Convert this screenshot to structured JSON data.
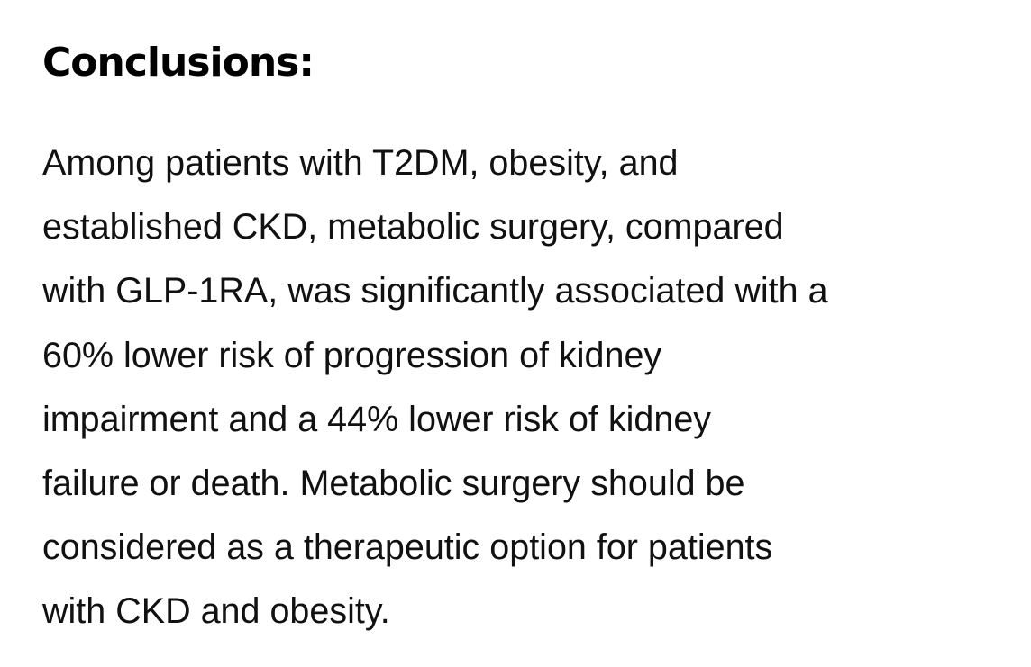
{
  "section": {
    "heading": "Conclusions:",
    "lines": [
      "Among patients with T2DM, obesity, and",
      "established CKD, metabolic surgery, compared",
      "with GLP-1RA, was significantly associated with a",
      "60% lower risk of progression of kidney",
      "impairment and a 44% lower risk of kidney",
      "failure or death. Metabolic surgery should be",
      "considered as a therapeutic option for patients",
      "with CKD and obesity."
    ]
  }
}
